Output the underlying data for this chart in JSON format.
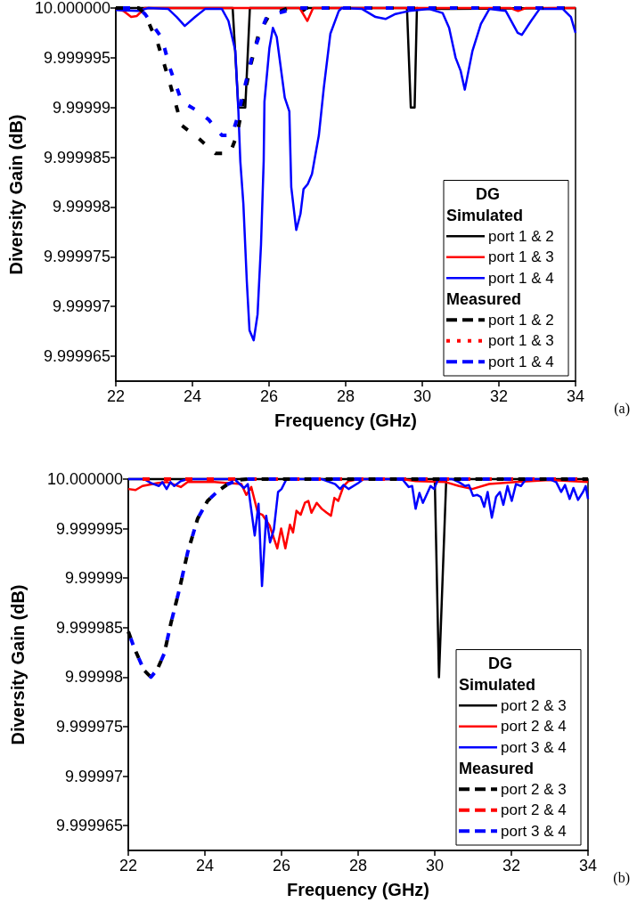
{
  "chart_data": [
    {
      "type": "line",
      "xlabel": "Frequency (GHz)",
      "ylabel": "Diversity Gain (dB)",
      "legend_title": "DG",
      "annotations": [
        "Simulated",
        "Measured",
        "(a)"
      ],
      "legend": "bottom right",
      "grid": false,
      "xlim": [
        22,
        34
      ],
      "xticks": [
        22,
        24,
        26,
        28,
        30,
        32,
        34
      ],
      "ylim": [
        9.9999625,
        10
      ],
      "yticks": [
        9.999965,
        9.99997,
        9.999975,
        9.99998,
        9.999985,
        9.99999,
        9.999995,
        {
          "value": 10,
          "label": "10.000000"
        }
      ],
      "series": [
        {
          "name": "port 1 & 2",
          "color": "#000000",
          "line_style": "solid",
          "x": [
            22,
            25.05,
            25.2,
            25.38,
            25.5,
            25.6,
            26.8,
            26.9,
            27.0,
            29.6,
            29.7,
            29.8,
            29.86,
            30.0,
            34
          ],
          "values": [
            10,
            10,
            9.99999,
            9.99999,
            10,
            10,
            10,
            9.9999997,
            10,
            10,
            9.99999,
            9.99999,
            10,
            9.9999999,
            10
          ]
        },
        {
          "name": "port 1 & 3",
          "color": "#ff0000",
          "line_style": "solid",
          "x": [
            22,
            22.2,
            22.4,
            22.55,
            22.76,
            23,
            26.8,
            27.0,
            27.15,
            32.3,
            32.5,
            32.7,
            34
          ],
          "values": [
            9.9999999,
            9.9999997,
            9.9999991,
            9.9999992,
            10,
            10,
            10,
            9.9999987,
            10,
            10,
            9.9999997,
            10,
            10
          ]
        },
        {
          "name": "port 1 & 4",
          "color": "#0000ff",
          "line_style": "solid",
          "x": [
            22,
            22.58,
            22.85,
            23.37,
            23.59,
            23.8,
            24.07,
            24.33,
            24.77,
            24.94,
            25.12,
            25.2,
            25.25,
            25.33,
            25.42,
            25.49,
            25.6,
            25.7,
            25.79,
            25.86,
            25.88,
            26.01,
            26.1,
            26.2,
            26.41,
            26.53,
            26.58,
            26.71,
            26.82,
            26.9,
            27.01,
            27.12,
            27.18,
            27.3,
            27.43,
            27.6,
            27.82,
            27.9,
            28.43,
            28.78,
            29.04,
            29.3,
            29.65,
            30.18,
            30.53,
            30.7,
            30.87,
            31.0,
            31.11,
            31.31,
            31.53,
            31.75,
            32.18,
            32.49,
            32.6,
            32.84,
            33.06,
            33.67,
            33.88,
            34
          ],
          "values": [
            9.9999998,
            9.9999997,
            10,
            9.9999999,
            9.9999991,
            9.9999982,
            9.9999991,
            9.9999999,
            9.9999999,
            9.9999987,
            9.9999957,
            9.9999896,
            9.9999846,
            9.9999803,
            9.9999725,
            9.9999676,
            9.9999666,
            9.9999692,
            9.9999762,
            9.9999846,
            9.9999906,
            9.999996,
            9.999998,
            9.9999971,
            9.999991,
            9.9999896,
            9.999982,
            9.9999777,
            9.9999793,
            9.9999818,
            9.9999823,
            9.9999833,
            9.9999846,
            9.9999872,
            9.999992,
            9.9999974,
            9.9999997,
            10,
            9.9999999,
            9.9999991,
            9.9999989,
            9.9999994,
            9.9999997,
            9.9999999,
            9.9999995,
            9.999998,
            9.999995,
            9.9999937,
            9.9999918,
            9.9999957,
            9.9999984,
            9.9999999,
            9.9999997,
            9.9999975,
            9.9999973,
            9.9999987,
            9.9999999,
            9.9999999,
            9.9999991,
            9.9999975
          ]
        },
        {
          "name": "port 1 & 2",
          "color": "#000000",
          "line_style": "dashed",
          "x": [
            22,
            22.6,
            22.76,
            23.1,
            23.37,
            23.72,
            24.16,
            24.6,
            24.98,
            25.16,
            25.38,
            25.5,
            25.73,
            25.99,
            26.5,
            34
          ],
          "values": [
            10,
            10,
            9.9999994,
            9.9999964,
            9.999993,
            9.9999882,
            9.9999869,
            9.9999854,
            9.9999854,
            9.9999872,
            9.9999916,
            9.999994,
            9.9999974,
            9.9999992,
            10,
            10
          ]
        },
        {
          "name": "port 1 & 3",
          "color": "#ff0000",
          "line_style": "dotted"
        },
        {
          "name": "port 1 & 4",
          "color": "#0000ff",
          "line_style": "dashed",
          "x": [
            22,
            22.6,
            22.76,
            23.2,
            23.41,
            23.72,
            24.07,
            24.42,
            24.77,
            25.03,
            25.16,
            25.38,
            25.55,
            25.77,
            25.94,
            26.34,
            26.69,
            34
          ],
          "values": [
            10,
            10,
            9.9999994,
            9.999997,
            9.999994,
            9.9999906,
            9.9999898,
            9.9999888,
            9.9999872,
            9.9999872,
            9.9999888,
            9.9999923,
            9.999995,
            9.9999975,
            9.9999991,
            9.9999996,
            10,
            10
          ]
        }
      ]
    },
    {
      "type": "line",
      "xlabel": "Frequency (GHz)",
      "ylabel": "Diversity Gain (dB)",
      "legend_title": "DG",
      "annotations": [
        "Simulated",
        "Measured",
        "(b)"
      ],
      "legend": "bottom right",
      "grid": false,
      "xlim": [
        22,
        34
      ],
      "xticks": [
        22,
        24,
        26,
        28,
        30,
        32,
        34
      ],
      "ylim": [
        9.9999625,
        10
      ],
      "yticks": [
        9.999965,
        9.99997,
        9.999975,
        9.99998,
        9.999985,
        9.99999,
        9.999995,
        {
          "value": 10,
          "label": "10.000000"
        }
      ],
      "series": [
        {
          "name": "port 2 & 3",
          "color": "#000000",
          "line_style": "solid",
          "x": [
            22,
            30.0,
            30.11,
            30.3,
            34
          ],
          "values": [
            10,
            10,
            9.99998,
            10,
            10
          ]
        },
        {
          "name": "port 2 & 4",
          "color": "#ff0000",
          "line_style": "solid",
          "x": [
            22,
            22.19,
            22.37,
            22.76,
            23.02,
            23.37,
            23.55,
            24.25,
            24.95,
            25.08,
            25.21,
            25.38,
            25.5,
            25.69,
            25.89,
            25.99,
            26.1,
            26.22,
            26.3,
            26.39,
            26.5,
            26.61,
            26.7,
            26.78,
            26.92,
            27.05,
            27.18,
            27.29,
            27.38,
            27.48,
            27.62,
            27.75,
            28.0,
            29.15,
            29.5,
            30.28,
            30.63,
            30.98,
            31.42,
            32.12,
            33.0,
            34
          ],
          "values": [
            9.999999,
            9.9999989,
            9.9999993,
            9.9999996,
            9.9999997,
            9.9999992,
            9.9999997,
            9.9999997,
            9.9999995,
            9.9999984,
            9.9999992,
            9.9999966,
            9.9999964,
            9.9999953,
            9.999993,
            9.999995,
            9.999993,
            9.9999954,
            9.9999946,
            9.9999968,
            9.9999964,
            9.9999976,
            9.9999978,
            9.9999966,
            9.9999976,
            9.999997,
            9.9999966,
            9.9999963,
            9.9999981,
            9.9999978,
            9.9999993,
            9.9999998,
            10,
            10,
            9.9999998,
            9.9999997,
            9.9999993,
            9.999999,
            9.9999995,
            9.9999997,
            9.9999999,
            9.9999997
          ]
        },
        {
          "name": "port 3 & 4",
          "color": "#0000ff",
          "line_style": "solid",
          "x": [
            22,
            22.41,
            22.59,
            22.8,
            22.89,
            23.0,
            23.1,
            23.2,
            23.37,
            23.55,
            24.77,
            25.02,
            25.12,
            25.3,
            25.4,
            25.49,
            25.6,
            25.7,
            25.8,
            25.91,
            26.0,
            26.13,
            27.05,
            27.4,
            27.53,
            27.62,
            27.75,
            28.0,
            28.14,
            29.15,
            29.32,
            29.41,
            29.5,
            29.6,
            29.69,
            29.89,
            29.98,
            30.09,
            30.46,
            30.63,
            30.79,
            30.89,
            31.0,
            31.11,
            31.2,
            31.29,
            31.38,
            31.49,
            31.6,
            31.7,
            31.79,
            31.9,
            32.01,
            32.12,
            32.25,
            32.38,
            33.0,
            33.17,
            33.3,
            33.4,
            33.52,
            33.62,
            33.74,
            33.87,
            33.94,
            34
          ],
          "values": [
            10,
            10,
            9.9999996,
            9.9999993,
            9.9999997,
            9.999999,
            9.9999997,
            9.9999993,
            9.9999998,
            10,
            10,
            9.9999991,
            9.9999995,
            9.9999943,
            9.9999975,
            9.9999892,
            9.9999963,
            9.9999936,
            9.9999949,
            9.9999987,
            9.999999,
            10,
            10,
            9.9999995,
            9.999999,
            9.9999994,
            9.999999,
            9.9999996,
            10,
            10,
            9.9999992,
            9.9999993,
            9.999997,
            9.9999986,
            9.9999976,
            9.9999993,
            9.999999,
            10,
            10,
            9.9999997,
            9.9999993,
            9.9999994,
            9.9999983,
            9.9999984,
            9.9999982,
            9.9999972,
            9.9999987,
            9.9999961,
            9.9999982,
            9.9999987,
            9.9999974,
            9.9999993,
            9.9999978,
            9.9999995,
            9.9999993,
            10,
            10,
            9.9999997,
            9.9999987,
            9.9999994,
            9.999998,
            9.9999991,
            9.9999979,
            9.9999987,
            9.9999993,
            9.999998
          ]
        },
        {
          "name": "port 2 & 3",
          "color": "#000000",
          "line_style": "dashed",
          "x": [
            22,
            22.15,
            22.41,
            22.59,
            22.76,
            22.94,
            23.11,
            23.33,
            23.55,
            23.81,
            24.07,
            24.34,
            24.6,
            24.86,
            25.12,
            34
          ],
          "values": [
            9.9999846,
            9.999983,
            9.9999807,
            9.99998,
            9.9999808,
            9.9999824,
            9.9999854,
            9.9999888,
            9.9999926,
            9.999996,
            9.9999978,
            9.9999988,
            9.9999995,
            9.9999999,
            10,
            10
          ]
        },
        {
          "name": "port 2 & 4",
          "color": "#ff0000",
          "line_style": "dashed",
          "x": [
            22,
            34
          ],
          "values": [
            10,
            10
          ]
        },
        {
          "name": "port 3 & 4",
          "color": "#0000ff",
          "line_style": "dashed",
          "x": [
            22,
            22.15,
            22.41,
            22.59,
            22.76,
            22.94,
            23.11,
            23.33,
            23.55,
            23.81,
            24.07,
            24.34,
            24.6,
            24.86,
            25.12,
            34
          ],
          "values": [
            9.9999846,
            9.999983,
            9.9999807,
            9.99998,
            9.9999808,
            9.9999824,
            9.9999854,
            9.9999888,
            9.9999926,
            9.999996,
            9.9999978,
            9.9999988,
            9.9999995,
            9.9999999,
            10,
            10
          ]
        }
      ]
    }
  ]
}
